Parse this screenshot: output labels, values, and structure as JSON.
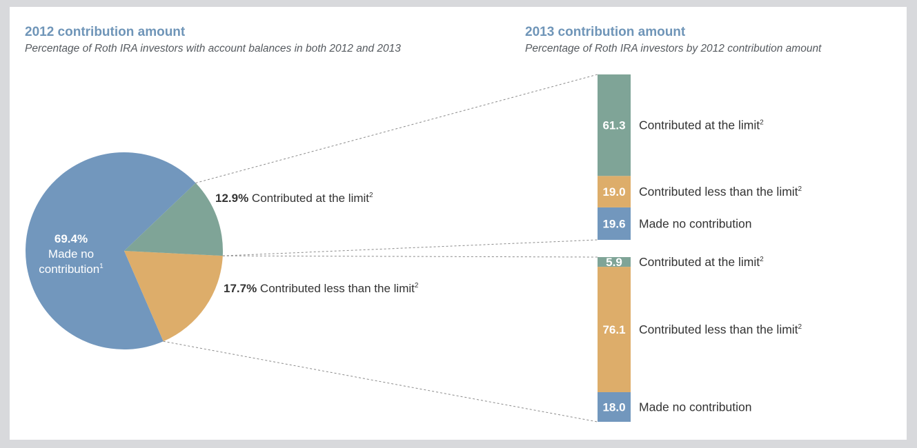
{
  "colors": {
    "made_no_contribution": "#7297bd",
    "contributed_less_than_limit": "#ddad6a",
    "contributed_at_limit": "#7fa497",
    "heading": "#6f95b8",
    "text": "#333333",
    "leader": "#8a8a8a"
  },
  "panel_left": {
    "title": "2012 contribution amount",
    "subtitle": "Percentage of Roth IRA investors with account balances in both 2012 and 2013"
  },
  "panel_right": {
    "title": "2013 contribution amount",
    "subtitle": "Percentage of Roth IRA investors by 2012 contribution amount"
  },
  "chart_data": [
    {
      "type": "pie",
      "title": "2012 contribution amount",
      "subtitle": "Percentage of Roth IRA investors with account balances in both 2012 and 2013",
      "unit": "%",
      "slices": [
        {
          "label": "Made no contribution",
          "footnote": "1",
          "value": 69.4,
          "color": "#7297bd"
        },
        {
          "label": "Contributed less than the limit",
          "footnote": "2",
          "value": 17.7,
          "color": "#ddad6a"
        },
        {
          "label": "Contributed at the limit",
          "footnote": "2",
          "value": 12.9,
          "color": "#7fa497"
        }
      ]
    },
    {
      "type": "bar",
      "stacked": true,
      "title": "2013 contribution amount",
      "subtitle": "Percentage of Roth IRA investors by 2012 contribution amount",
      "bars": [
        {
          "source_2012": "Contributed at the limit",
          "segments": [
            {
              "label": "Made no contribution",
              "footnote": "",
              "value": 19.6,
              "color": "#7297bd"
            },
            {
              "label": "Contributed less than the limit",
              "footnote": "2",
              "value": 19.0,
              "color": "#ddad6a"
            },
            {
              "label": "Contributed at the limit",
              "footnote": "2",
              "value": 61.3,
              "color": "#7fa497"
            }
          ]
        },
        {
          "source_2012": "Contributed less than the limit",
          "segments": [
            {
              "label": "Made no contribution",
              "footnote": "",
              "value": 18.0,
              "color": "#7297bd"
            },
            {
              "label": "Contributed less than the limit",
              "footnote": "2",
              "value": 76.1,
              "color": "#ddad6a"
            },
            {
              "label": "Contributed at the limit",
              "footnote": "2",
              "value": 5.9,
              "color": "#7fa497"
            }
          ]
        }
      ]
    }
  ]
}
